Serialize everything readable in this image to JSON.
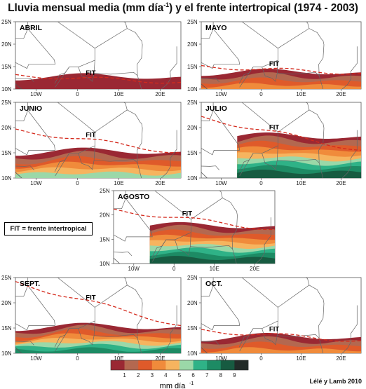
{
  "title": {
    "main": "Lluvia mensual media (mm día",
    "sup": "-1",
    "rest": ") y el frente intertropical (1974 - 2003)"
  },
  "lat_labels": [
    "25N",
    "20N",
    "15N",
    "10N"
  ],
  "lon_labels": [
    "10W",
    "0",
    "10E",
    "20E"
  ],
  "fit_label": "FIT",
  "panels": [
    {
      "id": "abril",
      "label": "ABRIL",
      "rain_extent_lat": 13.0,
      "itf_lat_range": [
        11.5,
        13.0
      ],
      "max_rain_class": 1
    },
    {
      "id": "mayo",
      "label": "MAYO",
      "rain_extent_lat": 14.0,
      "itf_lat_range": [
        13.5,
        15.0
      ],
      "max_rain_class": 4
    },
    {
      "id": "junio",
      "label": "JUNIO",
      "rain_extent_lat": 15.5,
      "itf_lat_range": [
        15.0,
        19.5
      ],
      "max_rain_class": 6
    },
    {
      "id": "julio",
      "label": "JULIO",
      "rain_extent_lat": 18.5,
      "itf_lat_range": [
        15.5,
        22.0
      ],
      "max_rain_class": 9
    },
    {
      "id": "agosto",
      "label": "AGOSTO",
      "rain_extent_lat": 18.0,
      "itf_lat_range": [
        17.0,
        21.0
      ],
      "max_rain_class": 9
    },
    {
      "id": "sept",
      "label": "SEPT.",
      "rain_extent_lat": 15.5,
      "itf_lat_range": [
        15.5,
        24.0
      ],
      "max_rain_class": 8
    },
    {
      "id": "oct",
      "label": "OCT.",
      "rain_extent_lat": 13.5,
      "itf_lat_range": [
        12.5,
        14.5
      ],
      "max_rain_class": 4
    }
  ],
  "legend_box": "FIT = frente intertropical",
  "colorbar": {
    "labels": [
      "1",
      "2",
      "3",
      "4",
      "5",
      "6",
      "7",
      "8",
      "9"
    ],
    "colors": [
      "#9a2833",
      "#b36850",
      "#df5a2a",
      "#f08b3b",
      "#f6b45f",
      "#9bd8a8",
      "#2fb287",
      "#1d8b64",
      "#175b41",
      "#222b28"
    ],
    "unit_main": "mm día",
    "unit_sup": "-1"
  },
  "credit": "Lélé y Lamb 2010"
}
